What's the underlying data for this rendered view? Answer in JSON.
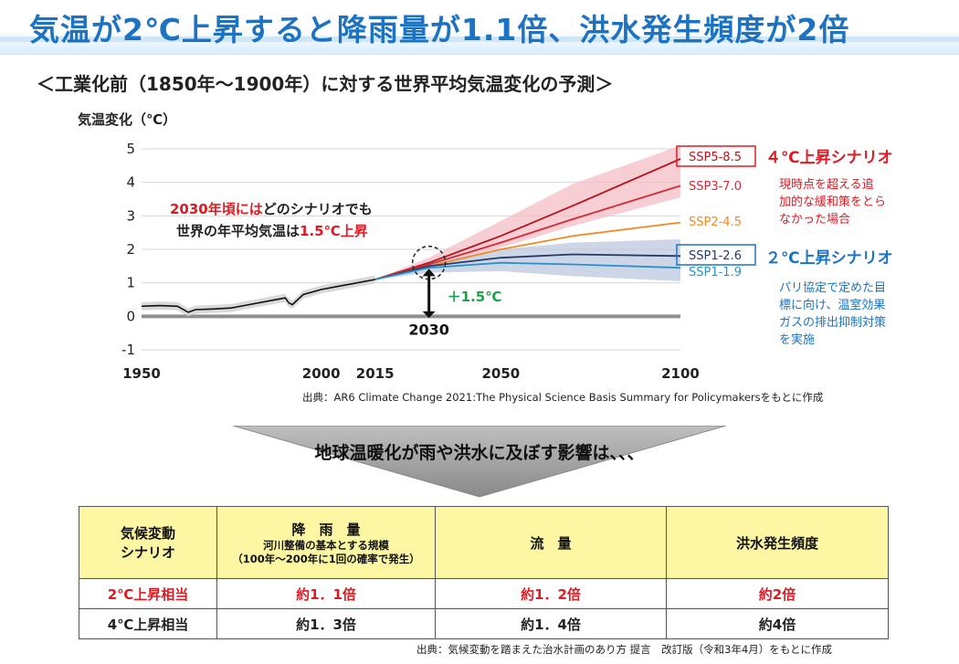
{
  "title": "気温が2℃上昇すると降雨量が1.1倍、洪水発生頻度が2倍",
  "subtitle": "＜工業化前（1850年～1900年）に対する世界平均気温変化の予測＞",
  "chart_data": {
    "type": "line",
    "ylabel": "気温変化（℃）",
    "xlim": [
      1950,
      2100
    ],
    "ylim": [
      -1,
      5
    ],
    "x_ticks": [
      "1950",
      "2000",
      "2015",
      "2050",
      "2100"
    ],
    "y_ticks": [
      "5",
      "4",
      "3",
      "2",
      "1",
      "0",
      "-1"
    ],
    "grid": true,
    "historical": {
      "x": [
        1950,
        1955,
        1960,
        1963,
        1965,
        1970,
        1975,
        1980,
        1985,
        1990,
        1991,
        1992,
        1995,
        2000,
        2005,
        2010,
        2015
      ],
      "y": [
        0.3,
        0.32,
        0.3,
        0.12,
        0.2,
        0.22,
        0.25,
        0.35,
        0.45,
        0.55,
        0.4,
        0.35,
        0.65,
        0.8,
        0.9,
        1.0,
        1.1
      ]
    },
    "series": [
      {
        "name": "SSP5-8.5",
        "color": "#b5171f",
        "x": [
          2015,
          2030,
          2050,
          2070,
          2100
        ],
        "y": [
          1.1,
          1.6,
          2.4,
          3.3,
          4.7
        ]
      },
      {
        "name": "SSP3-7.0",
        "color": "#d42936",
        "x": [
          2015,
          2030,
          2050,
          2070,
          2100
        ],
        "y": [
          1.1,
          1.55,
          2.2,
          2.9,
          3.9
        ]
      },
      {
        "name": "SSP2-4.5",
        "color": "#f08a24",
        "x": [
          2015,
          2030,
          2050,
          2070,
          2100
        ],
        "y": [
          1.1,
          1.5,
          2.0,
          2.4,
          2.8
        ]
      },
      {
        "name": "SSP1-2.6",
        "color": "#253a66",
        "x": [
          2015,
          2030,
          2050,
          2070,
          2100
        ],
        "y": [
          1.1,
          1.5,
          1.75,
          1.85,
          1.8
        ]
      },
      {
        "name": "SSP1-1.9",
        "color": "#2a90cc",
        "x": [
          2015,
          2030,
          2050,
          2070,
          2100
        ],
        "y": [
          1.1,
          1.45,
          1.6,
          1.55,
          1.45
        ]
      }
    ],
    "annotations": {
      "note_line1_red": "2030年頃には",
      "note_line1_black": "どのシナリオでも",
      "note_line2_black": "世界の年平均気温は",
      "note_line2_red": "1.5℃上昇",
      "plus_label": "＋1.5℃",
      "year_label": "2030",
      "scenario4_title": "４℃上昇シナリオ",
      "scenario4_desc": [
        "現時点を超える追",
        "加的な緩和策をとら",
        "なかった場合"
      ],
      "scenario2_title": "２℃上昇シナリオ",
      "scenario2_desc": [
        "パリ協定で定めた目",
        "標に向け、温室効果",
        "ガスの排出抑制対策",
        "を実施"
      ]
    }
  },
  "chart_source": "出典：AR6 Climate Change 2021:The Physical Science Basis Summary for Policymakersをもとに作成",
  "arrow_text": "地球温暖化が雨や洪水に及ぼす影響は、、、",
  "table": {
    "headers": [
      {
        "main": "気候変動\nシナリオ",
        "sub": []
      },
      {
        "main": "降　雨　量",
        "sub": [
          "河川整備の基本とする規模",
          "（100年～200年に1回の確率で発生）"
        ]
      },
      {
        "main": "流　量",
        "sub": []
      },
      {
        "main": "洪水発生頻度",
        "sub": []
      }
    ],
    "rows": [
      {
        "scenario": "2℃上昇相当",
        "rain": "約1．1倍",
        "flow": "約1．2倍",
        "freq": "約2倍"
      },
      {
        "scenario": "4℃上昇相当",
        "rain": "約1．3倍",
        "flow": "約1．4倍",
        "freq": "約4倍"
      }
    ]
  },
  "table_source": "出典：気候変動を踏まえた治水計画のあり方 提言　改訂版（令和3年4月）をもとに作成",
  "colors": {
    "title": "#1d73c2",
    "red": "#e01a22",
    "green": "#1aa34a",
    "blue": "#1d73c2",
    "header_bg": "#fdf6a3"
  }
}
